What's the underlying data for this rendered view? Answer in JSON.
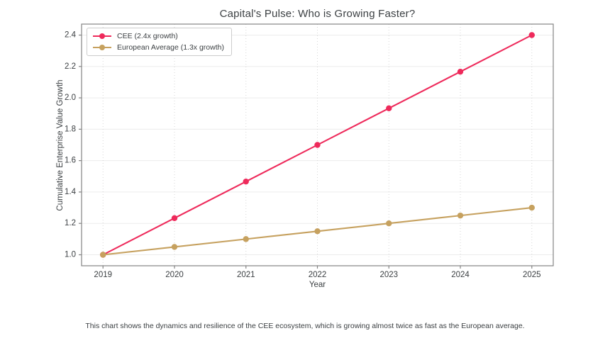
{
  "figure": {
    "footnote": "This chart shows the dynamics and resilience of the CEE ecosystem, which is growing almost twice as fast as the European average.",
    "colors": {
      "title_text": "#3c4043",
      "tick_text": "#3c4043",
      "spine": "#848484",
      "grid_horizontal": "#ececec",
      "grid_vertical": "#d6d6d6"
    }
  },
  "chart_data": {
    "type": "line",
    "title": "Capital's Pulse: Who is Growing Faster?",
    "xlabel": "Year",
    "ylabel": "Cumulative Enterprise Value Growth",
    "x": [
      2019,
      2020,
      2021,
      2022,
      2023,
      2024,
      2025
    ],
    "series": [
      {
        "name": "CEE (2.4x growth)",
        "color": "#ee2a5b",
        "values": [
          1.0,
          1.2333,
          1.4667,
          1.7,
          1.9333,
          2.1667,
          2.4
        ]
      },
      {
        "name": "European Average (1.3x growth)",
        "color": "#c6a15f",
        "values": [
          1.0,
          1.05,
          1.1,
          1.15,
          1.2,
          1.25,
          1.3
        ]
      }
    ],
    "yticks": [
      1.0,
      1.2,
      1.4,
      1.6,
      1.8,
      2.0,
      2.2,
      2.4
    ],
    "xlim": [
      2018.7,
      2025.3
    ],
    "ylim": [
      0.93,
      2.47
    ],
    "grid": true,
    "legend_position": "upper left"
  }
}
